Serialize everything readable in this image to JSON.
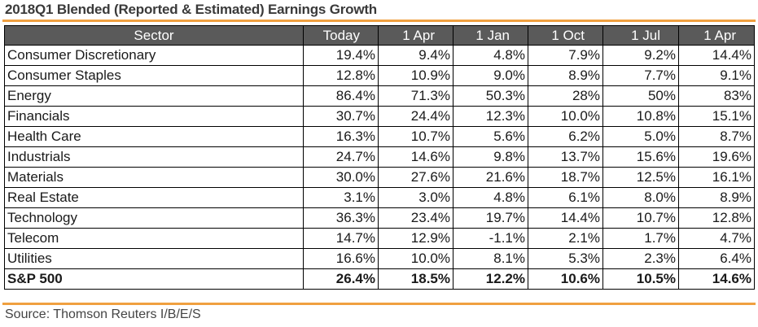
{
  "title": "2018Q1 Blended (Reported & Estimated) Earnings Growth",
  "accent_color": "#f0a040",
  "header_color": "#5a5a5a",
  "columns": [
    "Sector",
    "Today",
    "1 Apr",
    "1 Jan",
    "1 Oct",
    "1 Jul",
    "1 Apr"
  ],
  "rows": [
    {
      "sector": "Consumer Discretionary",
      "values": [
        "19.4%",
        "9.4%",
        "4.8%",
        "7.9%",
        "9.2%",
        "14.4%"
      ]
    },
    {
      "sector": "Consumer Staples",
      "values": [
        "12.8%",
        "10.9%",
        "9.0%",
        "8.9%",
        "7.7%",
        "9.1%"
      ]
    },
    {
      "sector": "Energy",
      "values": [
        "86.4%",
        "71.3%",
        "50.3%",
        "28%",
        "50%",
        "83%"
      ]
    },
    {
      "sector": "Financials",
      "values": [
        "30.7%",
        "24.4%",
        "12.3%",
        "10.0%",
        "10.8%",
        "15.1%"
      ]
    },
    {
      "sector": "Health Care",
      "values": [
        "16.3%",
        "10.7%",
        "5.6%",
        "6.2%",
        "5.0%",
        "8.7%"
      ]
    },
    {
      "sector": "Industrials",
      "values": [
        "24.7%",
        "14.6%",
        "9.8%",
        "13.7%",
        "15.6%",
        "19.6%"
      ]
    },
    {
      "sector": "Materials",
      "values": [
        "30.0%",
        "27.6%",
        "21.6%",
        "18.7%",
        "12.5%",
        "16.1%"
      ]
    },
    {
      "sector": "Real Estate",
      "values": [
        "3.1%",
        "3.0%",
        "4.8%",
        "6.1%",
        "8.0%",
        "8.9%"
      ]
    },
    {
      "sector": "Technology",
      "values": [
        "36.3%",
        "23.4%",
        "19.7%",
        "14.4%",
        "10.7%",
        "12.8%"
      ]
    },
    {
      "sector": "Telecom",
      "values": [
        "14.7%",
        "12.9%",
        "-1.1%",
        "2.1%",
        "1.7%",
        "4.7%"
      ]
    },
    {
      "sector": "Utilities",
      "values": [
        "16.6%",
        "10.0%",
        "8.1%",
        "5.3%",
        "2.3%",
        "6.4%"
      ]
    }
  ],
  "total": {
    "sector": "S&P 500",
    "values": [
      "26.4%",
      "18.5%",
      "12.2%",
      "10.6%",
      "10.5%",
      "14.6%"
    ]
  },
  "source": "Source: Thomson Reuters I/B/E/S"
}
